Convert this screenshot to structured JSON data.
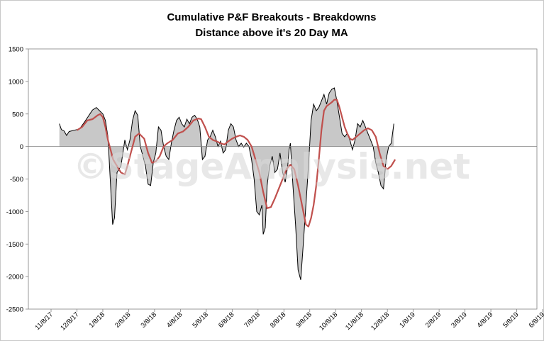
{
  "chart_data": {
    "type": "area",
    "title": "Cumulative P&F Breakouts - Breakdowns",
    "subtitle": "Distance above it's 20 Day MA",
    "watermark": "©StageAnalysis.net",
    "ylim": [
      -2500,
      1500
    ],
    "yticks": [
      1500,
      1000,
      500,
      0,
      -500,
      -1000,
      -1500,
      -2000,
      -2500
    ],
    "xticks": [
      "11/8/17",
      "12/8/17",
      "1/8/18",
      "2/8/18",
      "3/8/18",
      "4/8/18",
      "5/8/18",
      "6/8/18",
      "7/8/18",
      "8/8/18",
      "9/8/18",
      "10/8/18",
      "11/8/18",
      "12/8/18",
      "1/8/19",
      "2/8/19",
      "3/8/19",
      "4/8/19",
      "5/8/19",
      "6/8/19"
    ],
    "grid": false,
    "colors": {
      "area_fill": "#c8c8c8",
      "area_line": "#000000",
      "ma_line": "#c0504d",
      "frame": "#808080"
    },
    "series": [
      {
        "points": [
          [
            0.32,
            350
          ],
          [
            0.4,
            260
          ],
          [
            0.5,
            240
          ],
          [
            0.6,
            170
          ],
          [
            0.7,
            230
          ],
          [
            0.9,
            250
          ],
          [
            1.1,
            270
          ],
          [
            1.3,
            380
          ],
          [
            1.45,
            470
          ],
          [
            1.6,
            560
          ],
          [
            1.75,
            600
          ],
          [
            1.9,
            540
          ],
          [
            2.0,
            500
          ],
          [
            2.1,
            400
          ],
          [
            2.2,
            150
          ],
          [
            2.3,
            -600
          ],
          [
            2.38,
            -1200
          ],
          [
            2.45,
            -1100
          ],
          [
            2.55,
            -400
          ],
          [
            2.7,
            -300
          ],
          [
            2.85,
            100
          ],
          [
            2.95,
            -50
          ],
          [
            3.05,
            100
          ],
          [
            3.15,
            400
          ],
          [
            3.25,
            550
          ],
          [
            3.35,
            480
          ],
          [
            3.45,
            0
          ],
          [
            3.55,
            -150
          ],
          [
            3.65,
            -300
          ],
          [
            3.75,
            -580
          ],
          [
            3.85,
            -600
          ],
          [
            3.95,
            -250
          ],
          [
            4.05,
            -100
          ],
          [
            4.15,
            300
          ],
          [
            4.25,
            250
          ],
          [
            4.35,
            0
          ],
          [
            4.45,
            -150
          ],
          [
            4.55,
            -200
          ],
          [
            4.65,
            50
          ],
          [
            4.75,
            250
          ],
          [
            4.85,
            400
          ],
          [
            4.95,
            450
          ],
          [
            5.05,
            350
          ],
          [
            5.15,
            300
          ],
          [
            5.25,
            420
          ],
          [
            5.35,
            350
          ],
          [
            5.45,
            450
          ],
          [
            5.55,
            480
          ],
          [
            5.65,
            420
          ],
          [
            5.75,
            300
          ],
          [
            5.85,
            -200
          ],
          [
            5.95,
            -150
          ],
          [
            6.05,
            100
          ],
          [
            6.15,
            150
          ],
          [
            6.25,
            250
          ],
          [
            6.35,
            150
          ],
          [
            6.45,
            0
          ],
          [
            6.55,
            80
          ],
          [
            6.65,
            -100
          ],
          [
            6.75,
            -50
          ],
          [
            6.85,
            250
          ],
          [
            6.95,
            350
          ],
          [
            7.05,
            300
          ],
          [
            7.15,
            100
          ],
          [
            7.25,
            0
          ],
          [
            7.35,
            50
          ],
          [
            7.45,
            -10
          ],
          [
            7.55,
            50
          ],
          [
            7.65,
            0
          ],
          [
            7.75,
            -200
          ],
          [
            7.85,
            -500
          ],
          [
            7.95,
            -1000
          ],
          [
            8.05,
            -1050
          ],
          [
            8.15,
            -900
          ],
          [
            8.2,
            -1350
          ],
          [
            8.28,
            -1250
          ],
          [
            8.35,
            -600
          ],
          [
            8.45,
            -300
          ],
          [
            8.55,
            -150
          ],
          [
            8.65,
            -400
          ],
          [
            8.75,
            -350
          ],
          [
            8.85,
            -100
          ],
          [
            8.95,
            -400
          ],
          [
            9.05,
            -550
          ],
          [
            9.15,
            -300
          ],
          [
            9.2,
            -50
          ],
          [
            9.25,
            50
          ],
          [
            9.35,
            -600
          ],
          [
            9.45,
            -1200
          ],
          [
            9.55,
            -1900
          ],
          [
            9.65,
            -2050
          ],
          [
            9.75,
            -1500
          ],
          [
            9.85,
            -900
          ],
          [
            9.95,
            -300
          ],
          [
            10.05,
            400
          ],
          [
            10.15,
            650
          ],
          [
            10.25,
            550
          ],
          [
            10.35,
            600
          ],
          [
            10.45,
            700
          ],
          [
            10.55,
            800
          ],
          [
            10.65,
            650
          ],
          [
            10.75,
            820
          ],
          [
            10.85,
            880
          ],
          [
            10.95,
            900
          ],
          [
            11.05,
            700
          ],
          [
            11.15,
            450
          ],
          [
            11.25,
            200
          ],
          [
            11.35,
            150
          ],
          [
            11.45,
            200
          ],
          [
            11.55,
            100
          ],
          [
            11.65,
            -50
          ],
          [
            11.75,
            100
          ],
          [
            11.85,
            350
          ],
          [
            11.95,
            300
          ],
          [
            12.05,
            400
          ],
          [
            12.15,
            300
          ],
          [
            12.25,
            200
          ],
          [
            12.35,
            100
          ],
          [
            12.45,
            0
          ],
          [
            12.55,
            -250
          ],
          [
            12.65,
            -400
          ],
          [
            12.75,
            -600
          ],
          [
            12.85,
            -650
          ],
          [
            12.95,
            -200
          ],
          [
            13.05,
            0
          ],
          [
            13.15,
            50
          ],
          [
            13.25,
            350
          ]
        ]
      },
      {
        "points": [
          [
            1.0,
            250
          ],
          [
            1.2,
            300
          ],
          [
            1.4,
            400
          ],
          [
            1.6,
            420
          ],
          [
            1.8,
            480
          ],
          [
            1.9,
            500
          ],
          [
            2.0,
            450
          ],
          [
            2.1,
            300
          ],
          [
            2.2,
            100
          ],
          [
            2.3,
            -50
          ],
          [
            2.4,
            -200
          ],
          [
            2.55,
            -300
          ],
          [
            2.7,
            -400
          ],
          [
            2.85,
            -430
          ],
          [
            2.95,
            -300
          ],
          [
            3.05,
            -150
          ],
          [
            3.15,
            0
          ],
          [
            3.25,
            150
          ],
          [
            3.4,
            200
          ],
          [
            3.6,
            120
          ],
          [
            3.75,
            -100
          ],
          [
            3.9,
            -250
          ],
          [
            4.05,
            -230
          ],
          [
            4.2,
            -150
          ],
          [
            4.35,
            0
          ],
          [
            4.5,
            50
          ],
          [
            4.7,
            100
          ],
          [
            4.9,
            200
          ],
          [
            5.1,
            230
          ],
          [
            5.3,
            300
          ],
          [
            5.5,
            400
          ],
          [
            5.7,
            430
          ],
          [
            5.8,
            420
          ],
          [
            5.95,
            300
          ],
          [
            6.1,
            150
          ],
          [
            6.25,
            100
          ],
          [
            6.4,
            80
          ],
          [
            6.55,
            50
          ],
          [
            6.7,
            30
          ],
          [
            6.85,
            80
          ],
          [
            7.0,
            120
          ],
          [
            7.15,
            150
          ],
          [
            7.3,
            170
          ],
          [
            7.45,
            150
          ],
          [
            7.6,
            100
          ],
          [
            7.75,
            0
          ],
          [
            7.9,
            -200
          ],
          [
            8.05,
            -400
          ],
          [
            8.2,
            -700
          ],
          [
            8.35,
            -950
          ],
          [
            8.5,
            -930
          ],
          [
            8.65,
            -800
          ],
          [
            8.8,
            -650
          ],
          [
            8.95,
            -500
          ],
          [
            9.1,
            -350
          ],
          [
            9.25,
            -280
          ],
          [
            9.4,
            -350
          ],
          [
            9.55,
            -600
          ],
          [
            9.7,
            -900
          ],
          [
            9.85,
            -1200
          ],
          [
            9.95,
            -1230
          ],
          [
            10.05,
            -1100
          ],
          [
            10.15,
            -900
          ],
          [
            10.25,
            -600
          ],
          [
            10.35,
            -200
          ],
          [
            10.45,
            250
          ],
          [
            10.55,
            550
          ],
          [
            10.65,
            620
          ],
          [
            10.75,
            650
          ],
          [
            10.85,
            680
          ],
          [
            10.95,
            720
          ],
          [
            11.05,
            720
          ],
          [
            11.15,
            600
          ],
          [
            11.25,
            450
          ],
          [
            11.35,
            300
          ],
          [
            11.45,
            200
          ],
          [
            11.55,
            120
          ],
          [
            11.65,
            100
          ],
          [
            11.8,
            150
          ],
          [
            11.95,
            200
          ],
          [
            12.1,
            250
          ],
          [
            12.25,
            280
          ],
          [
            12.4,
            250
          ],
          [
            12.55,
            150
          ],
          [
            12.7,
            -100
          ],
          [
            12.85,
            -300
          ],
          [
            13.0,
            -350
          ],
          [
            13.15,
            -300
          ],
          [
            13.3,
            -200
          ]
        ]
      }
    ]
  }
}
